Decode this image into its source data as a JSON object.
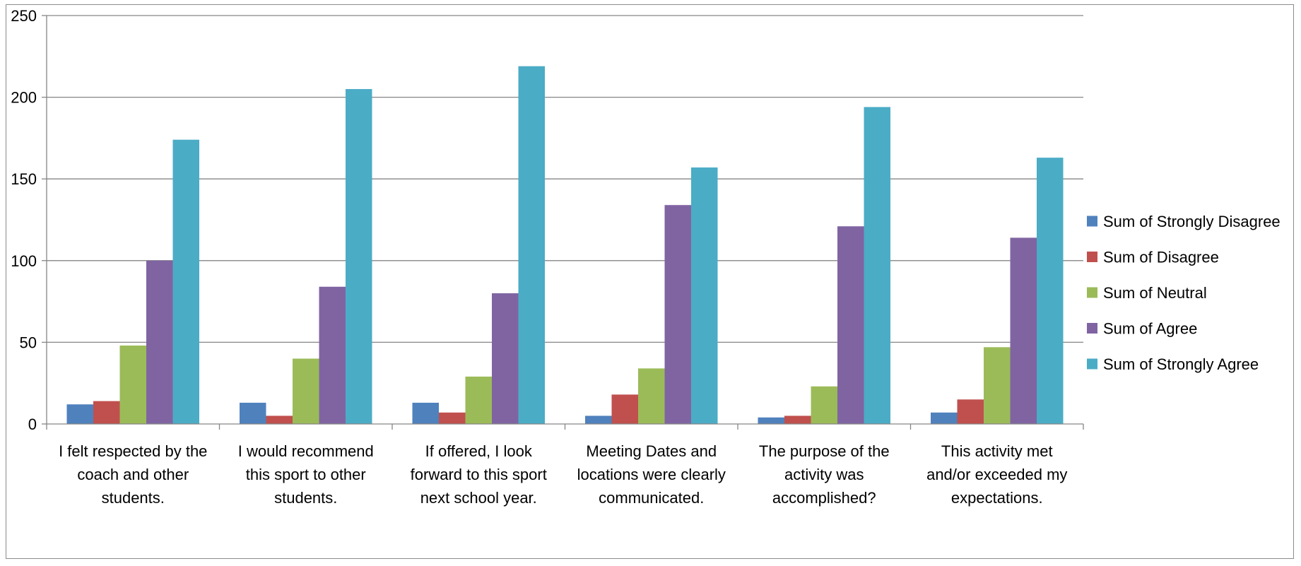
{
  "chart_data": {
    "type": "bar",
    "title": "",
    "xlabel": "",
    "ylabel": "",
    "ylim": [
      0,
      250
    ],
    "yticks": [
      0,
      50,
      100,
      150,
      200,
      250
    ],
    "grid": true,
    "legend_position": "right",
    "categories": [
      [
        "I felt respected by the",
        "coach and other",
        "students."
      ],
      [
        "I would recommend",
        "this sport to other",
        "students."
      ],
      [
        "If offered, I look",
        "forward to this sport",
        "next school year."
      ],
      [
        "Meeting Dates and",
        "locations were clearly",
        "communicated."
      ],
      [
        "The purpose of the",
        "activity was",
        "accomplished?"
      ],
      [
        "This activity met",
        "and/or exceeded my",
        "expectations."
      ]
    ],
    "series": [
      {
        "name": "Sum of Strongly Disagree",
        "color": "#4F81BD",
        "values": [
          12,
          13,
          13,
          5,
          4,
          7
        ]
      },
      {
        "name": "Sum of Disagree",
        "color": "#C0504D",
        "values": [
          14,
          5,
          7,
          18,
          5,
          15
        ]
      },
      {
        "name": "Sum of Neutral",
        "color": "#9BBB59",
        "values": [
          48,
          40,
          29,
          34,
          23,
          47
        ]
      },
      {
        "name": "Sum of Agree",
        "color": "#8064A2",
        "values": [
          100,
          84,
          80,
          134,
          121,
          114
        ]
      },
      {
        "name": "Sum of Strongly Agree",
        "color": "#4BACC6",
        "values": [
          174,
          205,
          219,
          157,
          194,
          163
        ]
      }
    ]
  }
}
